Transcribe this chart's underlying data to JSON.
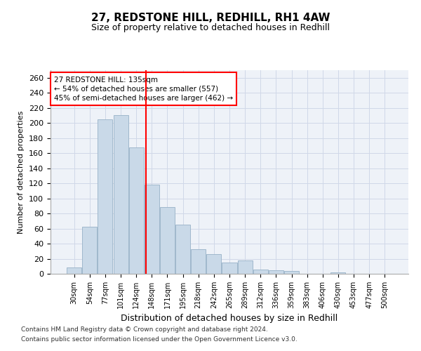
{
  "title": "27, REDSTONE HILL, REDHILL, RH1 4AW",
  "subtitle": "Size of property relative to detached houses in Redhill",
  "xlabel": "Distribution of detached houses by size in Redhill",
  "ylabel": "Number of detached properties",
  "footer_line1": "Contains HM Land Registry data © Crown copyright and database right 2024.",
  "footer_line2": "Contains public sector information licensed under the Open Government Licence v3.0.",
  "bar_labels": [
    "30sqm",
    "54sqm",
    "77sqm",
    "101sqm",
    "124sqm",
    "148sqm",
    "171sqm",
    "195sqm",
    "218sqm",
    "242sqm",
    "265sqm",
    "289sqm",
    "312sqm",
    "336sqm",
    "359sqm",
    "383sqm",
    "406sqm",
    "430sqm",
    "453sqm",
    "477sqm",
    "500sqm"
  ],
  "bar_values": [
    8,
    62,
    205,
    210,
    168,
    118,
    88,
    65,
    33,
    26,
    15,
    18,
    6,
    5,
    4,
    0,
    0,
    2,
    0,
    0,
    0
  ],
  "bar_color": "#c9d9e8",
  "bar_edge_color": "#a0b8cc",
  "grid_color": "#d0d8e8",
  "background_color": "#eef2f8",
  "redline_x": 4.62,
  "annotation_text": "27 REDSTONE HILL: 135sqm\n← 54% of detached houses are smaller (557)\n45% of semi-detached houses are larger (462) →",
  "annotation_box_color": "white",
  "annotation_box_edgecolor": "red",
  "ylim": [
    0,
    270
  ],
  "yticks": [
    0,
    20,
    40,
    60,
    80,
    100,
    120,
    140,
    160,
    180,
    200,
    220,
    240,
    260
  ]
}
